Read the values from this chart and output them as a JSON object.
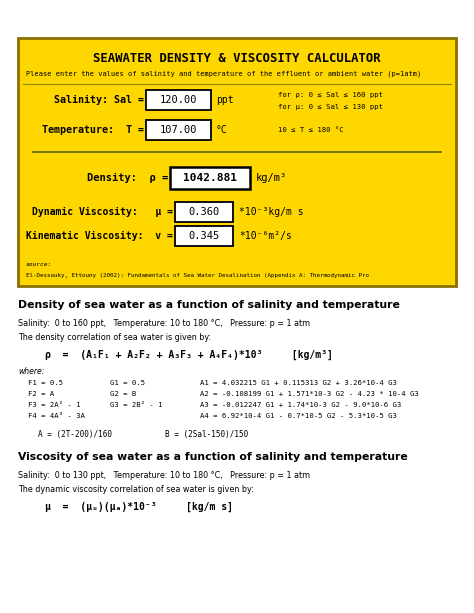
{
  "bg_color": "#ffffff",
  "yellow_box_color": "#FFD700",
  "yellow_box_border": "#8B7000",
  "title": "SEAWATER DENSITY & VISCOSITY CALCULATOR",
  "subtitle": "Please enter the values of salinity and temperature of the effluent or ambient water (p=1atm)",
  "salinity_label": "Salinity: Sal =",
  "salinity_value": "120.00",
  "salinity_unit": "ppt",
  "temp_label": "Temperature:  T =",
  "temp_value": "107.00",
  "temp_unit": "°C",
  "range_note1": "for ρ: 0 ≤ Sal ≤ 160 ppt",
  "range_note2": "for μ: 0 ≤ Sal ≤ 130 ppt",
  "range_note3": "10 ≤ T ≤ 180 °C",
  "density_label": "Density:  ρ =",
  "density_value": "1042.881",
  "density_unit": "kg/m³",
  "dyn_visc_label": "Dynamic Viscosity:   μ =",
  "dyn_visc_value": "0.360",
  "dyn_visc_unit": "*10⁻³kg/m s",
  "kin_visc_label": "Kinematic Viscosity:  v =",
  "kin_visc_value": "0.345",
  "kin_visc_unit": "*10⁻⁶m²/s",
  "source_text": "source:",
  "source_ref": "El-Dessouky, Ettouny (2002): Fundamentals of Sea Water Desalination (Appendix A: Thermodynamic Pro",
  "density_section_title": "Density of sea water as a function of salinity and temperature",
  "density_range": "Salinity:  0 to 160 ppt,   Temperature: 10 to 180 °C,   Pressure: p = 1 atm",
  "density_corr_intro": "The density correlation of sea water is given by:",
  "density_formula": "ρ  =  (A₁F₁ + A₂F₂ + A₃F₃ + A₄F₄)*10³     [kg/m³]",
  "where_label": "where:",
  "where_col1": [
    "F1 = 0.5",
    "F2 = A",
    "F3 = 2A² - 1",
    "F4 = 4A³ - 3A"
  ],
  "where_col2": [
    "G1 = 0.5",
    "G2 = B",
    "G3 = 2B² - 1",
    ""
  ],
  "where_col3": [
    "A1 = 4.032215 G1 + 0.115313 G2 + 3.26*10-4 G3",
    "A2 = -0.108199 G1 + 1.571*10-3 G2 - 4.23 * 10-4 G3",
    "A3 = -0.012247 G1 + 1.74*10-3 G2 - 9.0*10-6 G3",
    "A4 = 6.92*10-4 G1 - 0.7*10-5 G2 - 5.3*10-5 G3"
  ],
  "ab_formulas1": "A = (2T-200)/160",
  "ab_formulas2": "B = (2Sal-150)/150",
  "viscosity_section_title": "Viscosity of sea water as a function of salinity and temperature",
  "viscosity_range": "Salinity:  0 to 130 ppt,   Temperature: 10 to 180 °C,   Pressure: p = 1 atm",
  "viscosity_corr_intro": "The dynamic viscosity correlation of sea water is given by:",
  "viscosity_formula": "μ  =  (μᵤ)(μₐ)*10⁻³     [kg/m s]"
}
